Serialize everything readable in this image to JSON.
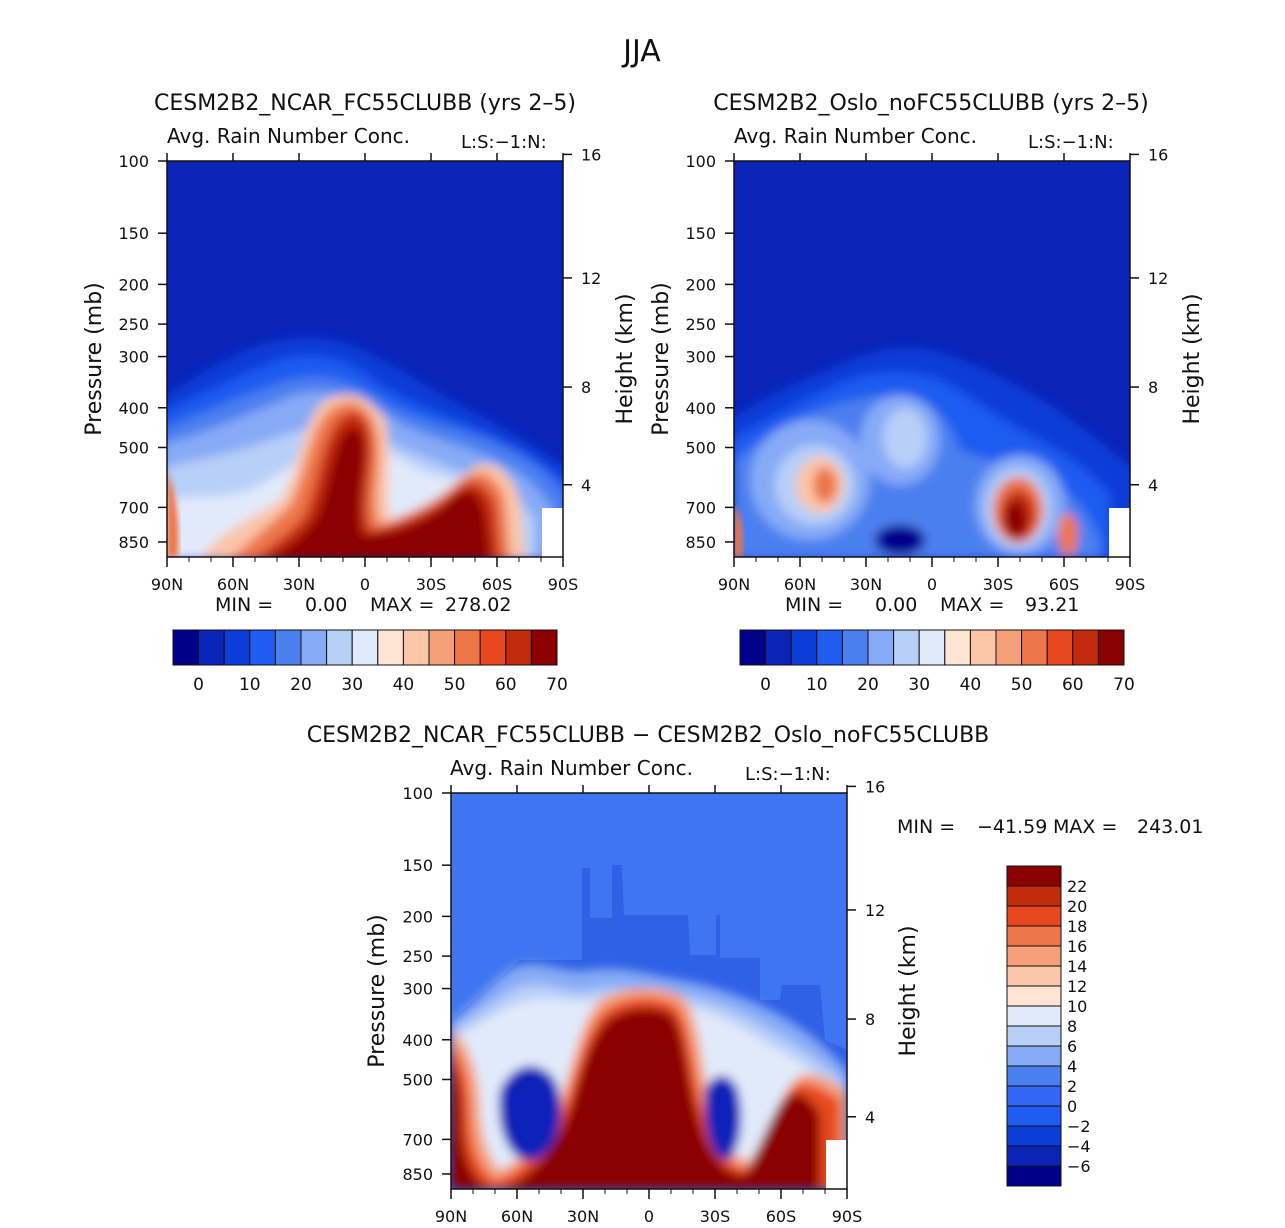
{
  "figure": {
    "season": "JJA"
  },
  "colors": {
    "ramp14": [
      "#00008b",
      "#0a24b8",
      "#0b3dd8",
      "#1f5cf0",
      "#4b7ff0",
      "#86aaf6",
      "#b8cff8",
      "#e1eafb",
      "#fde4d3",
      "#fbc5a8",
      "#f6a07a",
      "#ee7648",
      "#e7481f",
      "#c22a0d",
      "#8b0000"
    ],
    "diff_ramp": [
      "#00008b",
      "#0a24b8",
      "#0b3dd8",
      "#1f5cf0",
      "#3366f2",
      "#4b7ff0",
      "#86aaf6",
      "#b8cff8",
      "#e1eafb",
      "#fde4d3",
      "#fbc5a8",
      "#f6a07a",
      "#ee7648",
      "#e7481f",
      "#c22a0d",
      "#8b0000"
    ],
    "field_background": "#0a24b8",
    "diff_background": "#3f75f0"
  },
  "chart_data": [
    {
      "type": "contour",
      "id": "ncar",
      "title": "CESM2B2_NCAR_FC55CLUBB (yrs 2–5)",
      "subtitle": "Avg. Rain Number Conc.",
      "corner_label": "L:S:−1:N:",
      "ylabel": "Pressure (mb)",
      "y2label": "Height (km)",
      "pressure_ticks": [
        "100",
        "150",
        "200",
        "250",
        "300",
        "400",
        "500",
        "700",
        "850"
      ],
      "height_ticks": [
        "16",
        "12",
        "8",
        "4"
      ],
      "lat_ticks": [
        "90N",
        "60N",
        "30N",
        "0",
        "30S",
        "60S",
        "90S"
      ],
      "stats": {
        "min_label": "MIN =",
        "min": "0.00",
        "max_label": "MAX =",
        "max": "278.02"
      },
      "colorbar": {
        "labels": [
          "0",
          "10",
          "20",
          "30",
          "40",
          "50",
          "60",
          "70"
        ],
        "levels": 15
      }
    },
    {
      "type": "contour",
      "id": "oslo",
      "title": "CESM2B2_Oslo_noFC55CLUBB (yrs 2–5)",
      "subtitle": "Avg. Rain Number Conc.",
      "corner_label": "L:S:−1:N:",
      "ylabel": "Pressure (mb)",
      "y2label": "Height (km)",
      "pressure_ticks": [
        "100",
        "150",
        "200",
        "250",
        "300",
        "400",
        "500",
        "700",
        "850"
      ],
      "height_ticks": [
        "16",
        "12",
        "8",
        "4"
      ],
      "lat_ticks": [
        "90N",
        "60N",
        "30N",
        "0",
        "30S",
        "60S",
        "90S"
      ],
      "stats": {
        "min_label": "MIN =",
        "min": "0.00",
        "max_label": "MAX =",
        "max": "93.21"
      },
      "colorbar": {
        "labels": [
          "0",
          "10",
          "20",
          "30",
          "40",
          "50",
          "60",
          "70"
        ],
        "levels": 15
      }
    },
    {
      "type": "contour",
      "id": "diff",
      "title": "CESM2B2_NCAR_FC55CLUBB − CESM2B2_Oslo_noFC55CLUBB",
      "subtitle": "Avg. Rain Number Conc.",
      "corner_label": "L:S:−1:N:",
      "ylabel": "Pressure (mb)",
      "y2label": "Height (km)",
      "pressure_ticks": [
        "100",
        "150",
        "200",
        "250",
        "300",
        "400",
        "500",
        "700",
        "850"
      ],
      "height_ticks": [
        "16",
        "12",
        "8",
        "4"
      ],
      "lat_ticks": [
        "90N",
        "60N",
        "30N",
        "0",
        "30S",
        "60S",
        "90S"
      ],
      "stats": {
        "min_label": "MIN =",
        "min": "−41.59",
        "max_label": "MAX =",
        "max": "243.01"
      },
      "colorbar": {
        "labels": [
          "22",
          "20",
          "18",
          "16",
          "14",
          "12",
          "10",
          "8",
          "6",
          "4",
          "2",
          "0",
          "−2",
          "−4",
          "−6"
        ],
        "levels": 16
      }
    }
  ]
}
